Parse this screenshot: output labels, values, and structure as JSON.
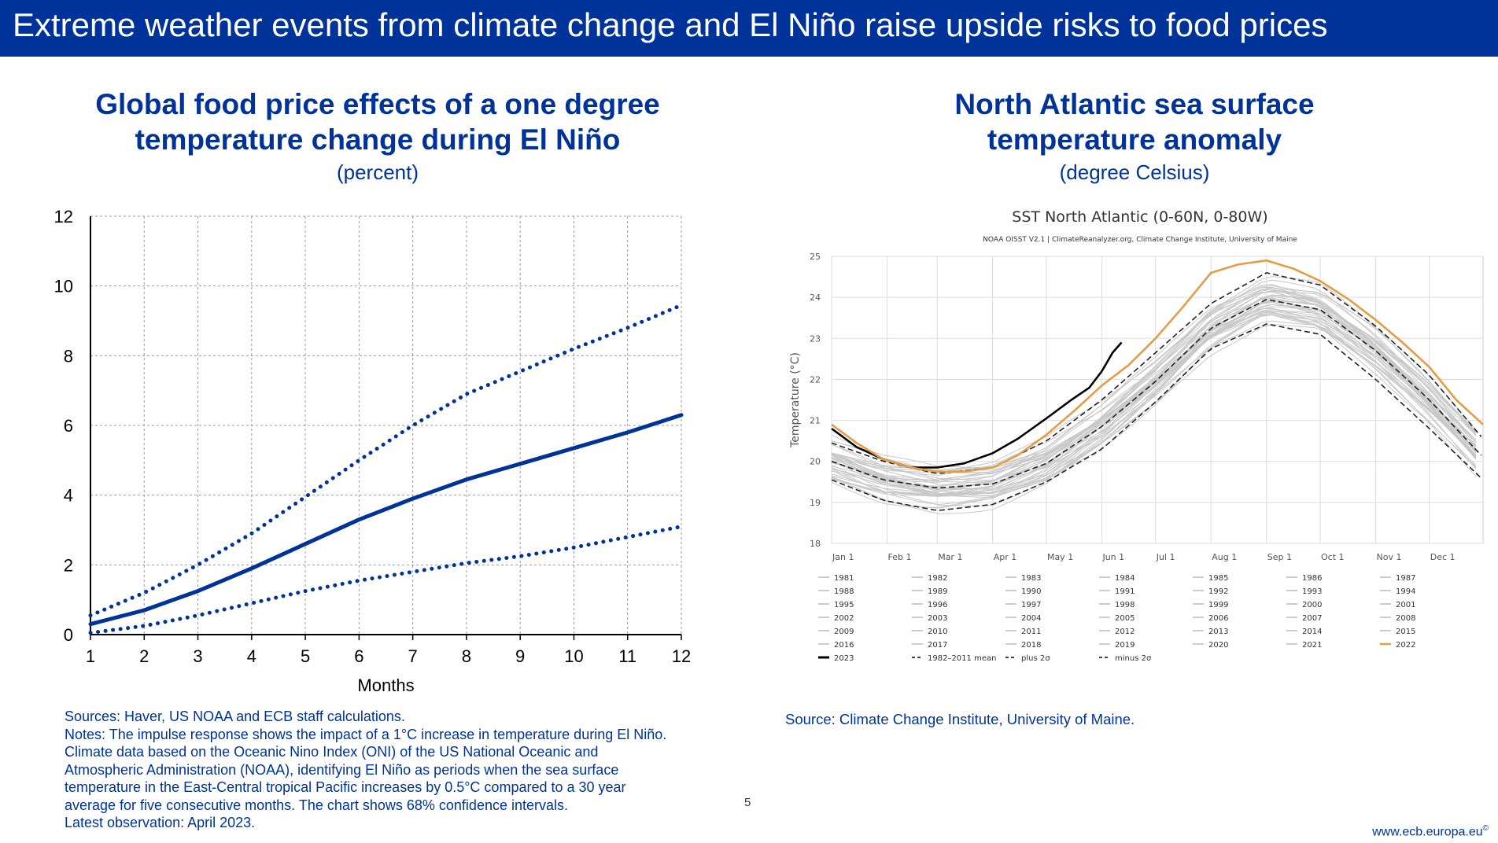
{
  "page": {
    "title": "Extreme weather events from climate change and El Niño raise upside risks to food prices",
    "page_number": "5",
    "footer_url": "www.ecb.europa.eu",
    "footer_mark": "©",
    "colors": {
      "banner": "#003399",
      "accent": "#003399",
      "white": "#ffffff",
      "orange": "#e69c45"
    }
  },
  "left_panel": {
    "title_line1": "Global food price effects of a one degree",
    "title_line2": "temperature change during El Niño",
    "subtitle": "(percent)",
    "notes": [
      "Sources: Haver, US NOAA and ECB staff calculations.",
      "Notes: The impulse response shows the impact of a 1°C increase in temperature during El Niño.",
      "Climate data based on the Oceanic Nino Index (ONI) of the US National Oceanic and",
      "Atmospheric Administration (NOAA), identifying El Niño as periods when the sea surface",
      "temperature in the East-Central tropical Pacific increases by 0.5°C compared to a 30 year",
      "average for five consecutive months. The chart shows 68% confidence intervals.",
      "Latest observation: April 2023."
    ]
  },
  "right_panel": {
    "title_line1": "North Atlantic sea surface",
    "title_line2": "temperature anomaly",
    "subtitle": "(degree Celsius)",
    "source": "Source: Climate Change Institute, University of Maine."
  },
  "chart_data": [
    {
      "type": "line",
      "xlabel": "Months",
      "ylabel": "",
      "x": [
        1,
        2,
        3,
        4,
        5,
        6,
        7,
        8,
        9,
        10,
        11,
        12
      ],
      "xlim": [
        1,
        12
      ],
      "ylim": [
        0,
        12
      ],
      "yticks": [
        0,
        2,
        4,
        6,
        8,
        10,
        12
      ],
      "grid": true,
      "series": [
        {
          "role": "estimate",
          "style": "solid",
          "values": [
            0.3,
            0.7,
            1.25,
            1.9,
            2.6,
            3.3,
            3.9,
            4.45,
            4.9,
            5.35,
            5.8,
            6.3
          ]
        },
        {
          "role": "upper",
          "style": "dotted",
          "values": [
            0.55,
            1.2,
            2.0,
            2.9,
            3.95,
            5.0,
            6.0,
            6.9,
            7.55,
            8.2,
            8.8,
            9.45
          ]
        },
        {
          "role": "lower",
          "style": "dotted",
          "values": [
            0.05,
            0.25,
            0.55,
            0.9,
            1.25,
            1.55,
            1.8,
            2.05,
            2.25,
            2.5,
            2.8,
            3.1
          ]
        }
      ],
      "color": "#003399"
    },
    {
      "type": "line",
      "title": "SST North Atlantic (0-60N, 0-80W)",
      "subtitle": "NOAA OISST V2.1 | ClimateReanalyzer.org, Climate Change Institute, University of Maine",
      "ylabel": "Temperature (°C)",
      "ylim": [
        18,
        25
      ],
      "yticks": [
        "18",
        "19",
        "20",
        "21",
        "22",
        "23",
        "24",
        "25"
      ],
      "xlim": [
        1,
        365
      ],
      "month_labels": [
        "Jan 1",
        "Feb 1",
        "Mar 1",
        "Apr 1",
        "May 1",
        "Jun 1",
        "Jul 1",
        "Aug 1",
        "Sep 1",
        "Oct 1",
        "Nov 1",
        "Dec 1"
      ],
      "month_days": [
        1,
        32,
        60,
        91,
        121,
        152,
        182,
        213,
        244,
        274,
        305,
        335
      ],
      "grid": true,
      "legend_years": [
        "1981",
        "1982",
        "1983",
        "1984",
        "1985",
        "1986",
        "1987",
        "1988",
        "1989",
        "1990",
        "1991",
        "1992",
        "1993",
        "1994",
        "1995",
        "1996",
        "1997",
        "1998",
        "1999",
        "2000",
        "2001",
        "2002",
        "2003",
        "2004",
        "2005",
        "2006",
        "2007",
        "2008",
        "2009",
        "2010",
        "2011",
        "2012",
        "2013",
        "2014",
        "2015",
        "2016",
        "2017",
        "2018",
        "2019",
        "2020",
        "2021",
        "2022"
      ],
      "legend_special": [
        {
          "label": "2023",
          "style": "black"
        },
        {
          "label": "1982–2011 mean",
          "style": "dashed"
        },
        {
          "label": "plus 2σ",
          "style": "dashed"
        },
        {
          "label": "minus 2σ",
          "style": "dashed"
        }
      ],
      "climatology": {
        "days": [
          1,
          30,
          60,
          91,
          121,
          152,
          182,
          213,
          244,
          274,
          305,
          335,
          365
        ],
        "mean": [
          20.0,
          19.55,
          19.35,
          19.45,
          19.95,
          20.85,
          21.95,
          23.25,
          23.95,
          23.7,
          22.7,
          21.5,
          20.1
        ],
        "plus2": [
          20.45,
          20.0,
          19.7,
          19.85,
          20.5,
          21.5,
          22.65,
          23.85,
          24.6,
          24.3,
          23.3,
          22.1,
          20.55
        ],
        "minus2": [
          19.55,
          19.05,
          18.8,
          18.95,
          19.5,
          20.3,
          21.45,
          22.75,
          23.35,
          23.1,
          22.0,
          20.8,
          19.55
        ]
      },
      "series": [
        {
          "name": "2023",
          "color": "#000000",
          "days": [
            1,
            15,
            30,
            45,
            60,
            75,
            91,
            105,
            121,
            135,
            145,
            152,
            158,
            163
          ],
          "values": [
            20.8,
            20.35,
            20.05,
            19.85,
            19.85,
            19.95,
            20.2,
            20.55,
            21.05,
            21.5,
            21.8,
            22.2,
            22.65,
            22.9
          ]
        },
        {
          "name": "2022",
          "color": "#e69c45",
          "days": [
            1,
            15,
            30,
            45,
            60,
            75,
            91,
            105,
            121,
            137,
            152,
            167,
            182,
            197,
            213,
            228,
            244,
            259,
            274,
            290,
            305,
            320,
            335,
            350,
            365
          ],
          "values": [
            20.9,
            20.45,
            20.05,
            19.85,
            19.75,
            19.75,
            19.85,
            20.15,
            20.65,
            21.25,
            21.85,
            22.35,
            23.0,
            23.75,
            24.6,
            24.8,
            24.9,
            24.7,
            24.4,
            23.95,
            23.45,
            22.9,
            22.3,
            21.5,
            20.9
          ]
        }
      ]
    }
  ]
}
